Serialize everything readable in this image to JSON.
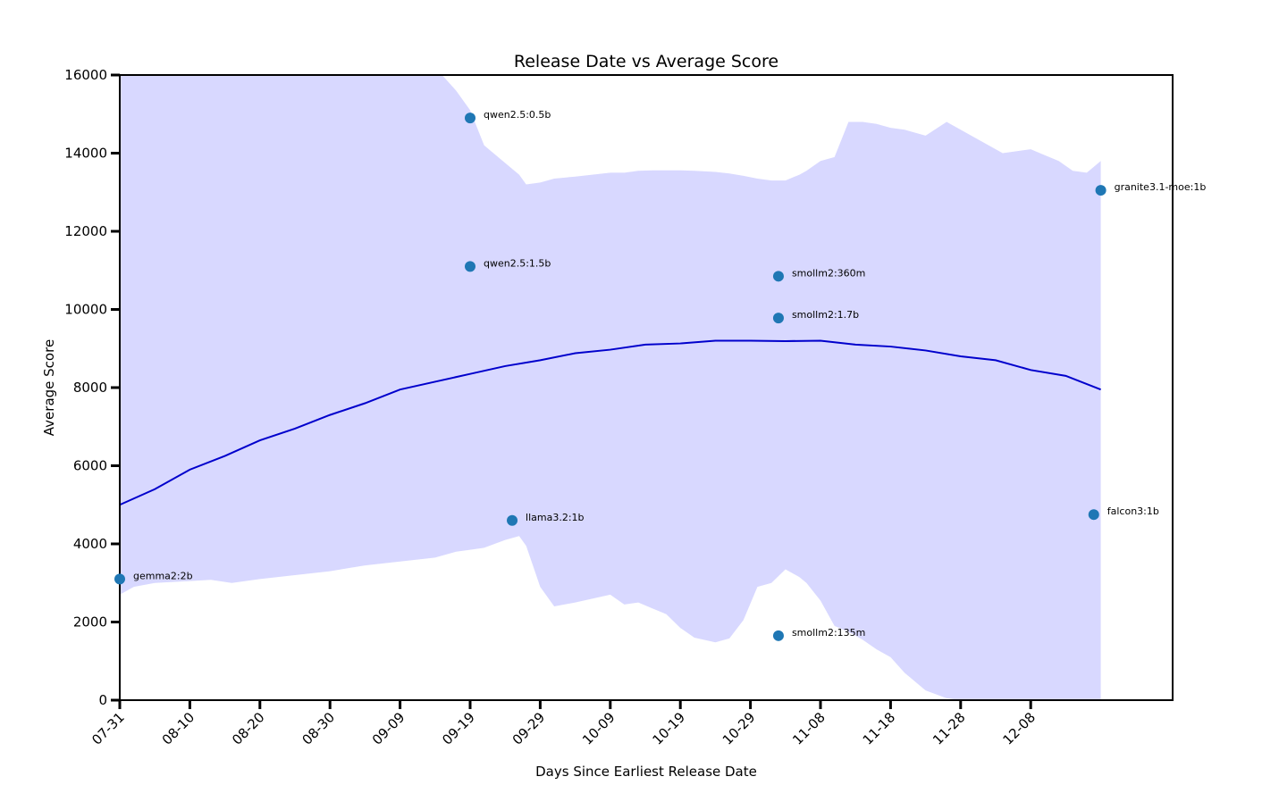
{
  "chart_data": {
    "type": "scatter",
    "title": "Release Date vs Average Score",
    "xlabel": "Days Since Earliest Release Date",
    "ylabel": "Average Score",
    "xlim": [
      0,
      150
    ],
    "ylim": [
      0,
      16000
    ],
    "x_ticks": [
      {
        "day": 0,
        "label": "07-31"
      },
      {
        "day": 10,
        "label": "08-10"
      },
      {
        "day": 20,
        "label": "08-20"
      },
      {
        "day": 30,
        "label": "08-30"
      },
      {
        "day": 40,
        "label": "09-09"
      },
      {
        "day": 50,
        "label": "09-19"
      },
      {
        "day": 60,
        "label": "09-29"
      },
      {
        "day": 70,
        "label": "10-09"
      },
      {
        "day": 80,
        "label": "10-19"
      },
      {
        "day": 90,
        "label": "10-29"
      },
      {
        "day": 100,
        "label": "11-08"
      },
      {
        "day": 110,
        "label": "11-18"
      },
      {
        "day": 120,
        "label": "11-28"
      },
      {
        "day": 130,
        "label": "12-08"
      }
    ],
    "y_ticks": [
      0,
      2000,
      4000,
      6000,
      8000,
      10000,
      12000,
      14000,
      16000
    ],
    "points": [
      {
        "label": "gemma2:2b",
        "x": 0,
        "y": 3100
      },
      {
        "label": "qwen2.5:0.5b",
        "x": 50,
        "y": 14900
      },
      {
        "label": "qwen2.5:1.5b",
        "x": 50,
        "y": 11100
      },
      {
        "label": "llama3.2:1b",
        "x": 56,
        "y": 4600
      },
      {
        "label": "smollm2:360m",
        "x": 94,
        "y": 10850
      },
      {
        "label": "smollm2:1.7b",
        "x": 94,
        "y": 9780
      },
      {
        "label": "smollm2:135m",
        "x": 94,
        "y": 1650
      },
      {
        "label": "falcon3:1b",
        "x": 139,
        "y": 4750
      },
      {
        "label": "granite3.1-moe:1b",
        "x": 140,
        "y": 13050
      }
    ],
    "trend": {
      "x": [
        0,
        5,
        10,
        15,
        20,
        25,
        30,
        35,
        40,
        45,
        50,
        55,
        60,
        65,
        70,
        75,
        80,
        85,
        90,
        95,
        100,
        105,
        110,
        115,
        120,
        125,
        130,
        135,
        140
      ],
      "y": [
        5000,
        5400,
        5900,
        6250,
        6650,
        6950,
        7300,
        7600,
        7950,
        8150,
        8350,
        8550,
        8700,
        8880,
        8970,
        9100,
        9130,
        9200,
        9200,
        9190,
        9200,
        9100,
        9050,
        8950,
        8800,
        8700,
        8450,
        8300,
        7950
      ],
      "color": "#0000cc"
    },
    "band": {
      "x": [
        0,
        2,
        5,
        10,
        13,
        16,
        20,
        25,
        30,
        35,
        40,
        45,
        46,
        48,
        50,
        52,
        55,
        57,
        58,
        60,
        62,
        65,
        70,
        72,
        74,
        76,
        78,
        80,
        82,
        85,
        87,
        89,
        91,
        93,
        95,
        97,
        98,
        100,
        102,
        104,
        106,
        108,
        110,
        112,
        115,
        118,
        120,
        124,
        126,
        130,
        132,
        134,
        136,
        138,
        140
      ],
      "upper": [
        16000,
        16000,
        16000,
        16000,
        16000,
        16000,
        16000,
        16000,
        16000,
        16000,
        16000,
        16000,
        16000,
        15600,
        15100,
        14200,
        13750,
        13450,
        13200,
        13250,
        13350,
        13400,
        13500,
        13500,
        13550,
        13560,
        13560,
        13560,
        13550,
        13520,
        13480,
        13420,
        13350,
        13300,
        13300,
        13450,
        13550,
        13800,
        13900,
        14800,
        14800,
        14750,
        14650,
        14600,
        14450,
        14800,
        14600,
        14200,
        14000,
        14100,
        13950,
        13800,
        13550,
        13500,
        13800
      ],
      "lower": [
        2700,
        2900,
        3000,
        3050,
        3080,
        3000,
        3100,
        3200,
        3300,
        3450,
        3550,
        3650,
        3700,
        3800,
        3850,
        3900,
        4100,
        4200,
        3950,
        2900,
        2400,
        2500,
        2700,
        2450,
        2500,
        2350,
        2200,
        1850,
        1600,
        1480,
        1580,
        2050,
        2900,
        3000,
        3350,
        3150,
        3000,
        2550,
        1900,
        1750,
        1550,
        1300,
        1100,
        700,
        250,
        50,
        0,
        0,
        0,
        0,
        0,
        0,
        0,
        0,
        0
      ],
      "color": "#d8d8ff"
    },
    "point_color": "#1f77b4",
    "grid": false,
    "legend": "none"
  }
}
